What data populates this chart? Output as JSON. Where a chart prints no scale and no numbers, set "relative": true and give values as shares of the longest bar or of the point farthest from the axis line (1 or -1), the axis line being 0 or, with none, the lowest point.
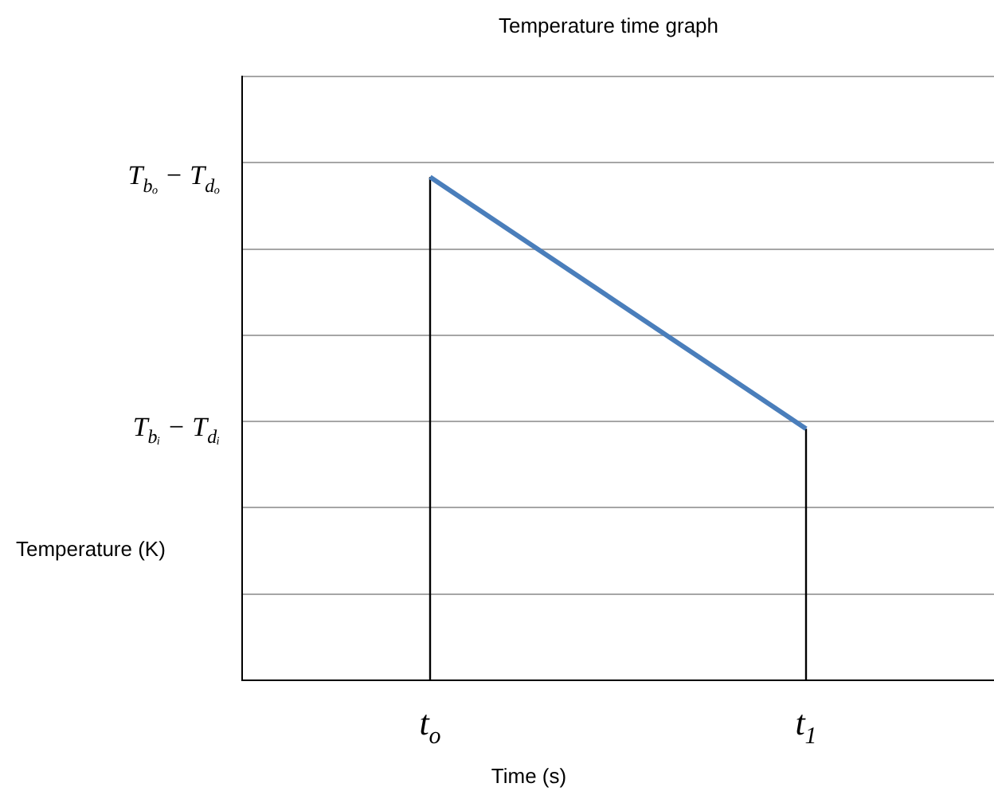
{
  "chart_data": {
    "type": "line",
    "title": "Temperature time graph",
    "xlabel": "Time (s)",
    "ylabel": "Temperature (K)",
    "categories": [
      null,
      "t$_{o}$",
      null,
      "t$_{1}$",
      null
    ],
    "series": [
      {
        "color": "#4a7ebb",
        "values": [
          null,
          1,
          null,
          0.5,
          null
        ]
      }
    ],
    "relative": true,
    "annotations": [
      "T$_{bₒ}$ − T$_{dₒ}$",
      "T$_{bᵢ}$ − T$_{dᵢ}$"
    ],
    "ref_lines": [
      {
        "axis": "x",
        "value": "t$_{o}$",
        "color": "#000000"
      },
      {
        "axis": "x",
        "value": "t$_{1}$",
        "color": "#000000"
      }
    ],
    "grid": "y",
    "legend": false,
    "marker": "none",
    "line_style": "solid"
  }
}
